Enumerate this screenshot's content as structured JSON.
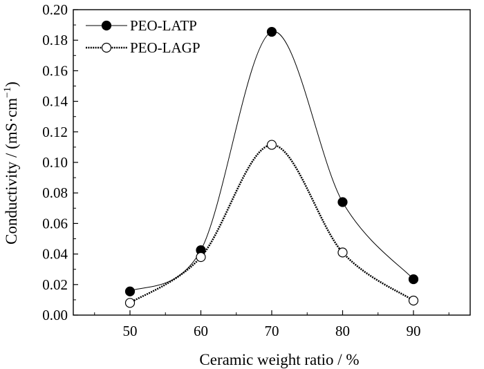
{
  "chart_data": {
    "type": "line",
    "xlabel": "Ceramic weight ratio / %",
    "ylabel_main": "Conductivity / (mS·cm",
    "ylabel_sup": "−1",
    "ylabel_close": ")",
    "xlim": [
      42,
      98
    ],
    "ylim": [
      0.0,
      0.2
    ],
    "x_ticks": [
      50,
      60,
      70,
      80,
      90
    ],
    "y_ticks": [
      0.0,
      0.02,
      0.04,
      0.06,
      0.08,
      0.1,
      0.12,
      0.14,
      0.16,
      0.18,
      0.2
    ],
    "y_tick_labels": [
      "0.00",
      "0.02",
      "0.04",
      "0.06",
      "0.08",
      "0.10",
      "0.12",
      "0.14",
      "0.16",
      "0.18",
      "0.20"
    ],
    "x": [
      50,
      60,
      70,
      80,
      90
    ],
    "grid": false,
    "legend_position": "top-left",
    "series": [
      {
        "name": "PEO-LATP",
        "marker": "filled-circle",
        "line": "solid",
        "color": "#000000",
        "values": [
          0.0155,
          0.0425,
          0.1855,
          0.074,
          0.0235
        ]
      },
      {
        "name": "PEO-LAGP",
        "marker": "open-circle",
        "line": "dotted",
        "color": "#000000",
        "values": [
          0.008,
          0.038,
          0.1115,
          0.041,
          0.0095
        ]
      }
    ]
  }
}
